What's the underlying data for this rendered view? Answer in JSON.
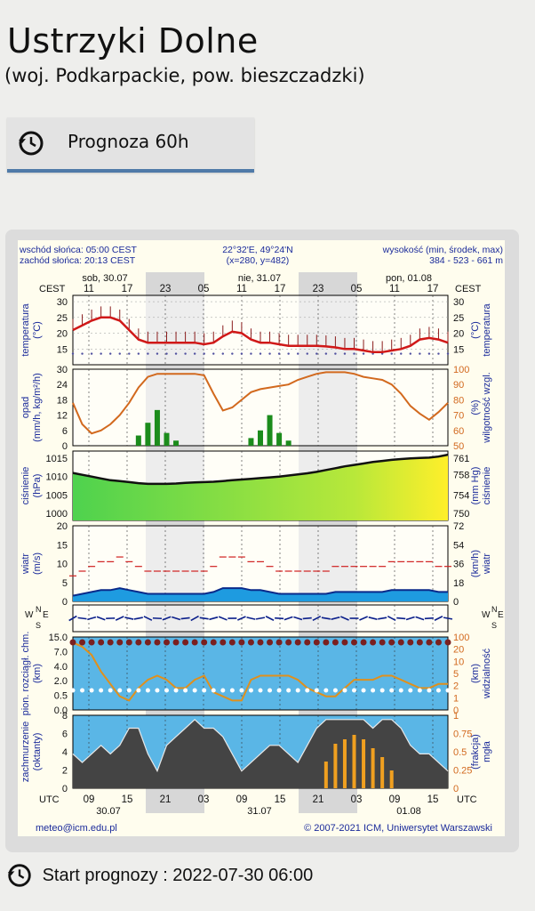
{
  "header": {
    "title": "Ustrzyki Dolne",
    "subtitle": "(woj. Podkarpackie, pow. bieszczadzki)"
  },
  "tab": {
    "label": "Prognoza 60h",
    "icon": "clock-history-icon"
  },
  "meteogram": {
    "sunrise": "wschód słońca: 05:00 CEST",
    "sunset": "zachód słońca: 20:13 CEST",
    "coords": "22°32'E, 49°24'N",
    "grid": "(x=280, y=482)",
    "elev_label": "wysokość (min, środek, max)",
    "elev_values": "384 - 523 - 661 m",
    "tz_top": "CEST",
    "tz_bottom": "UTC",
    "footer_left": "meteo@icm.edu.pl",
    "footer_right": "© 2007-2021 ICM, Uniwersytet Warszawski",
    "days_top": [
      "sob, 30.07",
      "nie, 31.07",
      "pon, 01.08"
    ],
    "hours_top": [
      "11",
      "17",
      "23",
      "05",
      "11",
      "17",
      "23",
      "05",
      "11",
      "17"
    ],
    "hours_bottom": [
      "09",
      "15",
      "21",
      "03",
      "09",
      "15",
      "21",
      "03",
      "09",
      "15"
    ],
    "days_bottom": [
      "30.07",
      "31.07",
      "01.08"
    ],
    "labels": {
      "temp_l": "temperatura",
      "temp_lu": "(°C)",
      "temp_r": "temperatura",
      "temp_ru": "(°C)",
      "opad_l": "opad",
      "opad_lu": "(mm/h, kg/m²/h)",
      "hum_r": "wilgotność wzgl.",
      "hum_ru": "(%)",
      "pres_l": "ciśnienie",
      "pres_lu": "(hPa)",
      "pres_r": "ciśnienie",
      "pres_ru": "(mm Hg)",
      "wind_l": "wiatr",
      "wind_lu": "(m/s)",
      "wind_r": "wiatr",
      "wind_ru": "(km/h)",
      "vis_l": "pion. rozciągł. chm.",
      "vis_lu": "(km)",
      "vis_r": "widzialność",
      "vis_ru": "(km)",
      "cloud_l": "zachmurzenie",
      "cloud_lu": "(oktanty)",
      "fog_r": "mgła",
      "fog_ru": "(frakcja)",
      "dir_n": "N",
      "dir_s": "S",
      "dir_w": "W",
      "dir_e": "E"
    }
  },
  "chart_data": [
    {
      "type": "line",
      "title": "temperatura",
      "ylabel": "temperatura (°C)",
      "ylim": [
        10,
        30
      ],
      "yticks": [
        15,
        20,
        25,
        30
      ],
      "series": [
        {
          "values": [
            21,
            22.5,
            24,
            25,
            25,
            24,
            21,
            18,
            17,
            17,
            17,
            17,
            17,
            17,
            16.5,
            17,
            19,
            20.5,
            20,
            18,
            17,
            17,
            16.5,
            16,
            16,
            16,
            16,
            15.8,
            15.5,
            15,
            15,
            14.5,
            14,
            14,
            14.5,
            15,
            16,
            18,
            18.5,
            18,
            17
          ]
        }
      ]
    },
    {
      "type": "line",
      "title": "opad / wilgotność",
      "ylabel": "opad (mm/h, kg/m²/h)",
      "y2label": "wilgotność wzgl. (%)",
      "ylim": [
        0,
        30
      ],
      "y2lim": [
        50,
        100
      ],
      "yticks": [
        0,
        6,
        12,
        18,
        24,
        30
      ],
      "y2ticks": [
        50,
        60,
        70,
        80,
        90,
        100
      ],
      "series": [
        {
          "values": [
            78,
            64,
            58,
            60,
            64,
            70,
            78,
            88,
            95,
            97,
            97,
            97,
            97,
            97,
            96,
            84,
            73,
            75,
            80,
            85,
            87,
            88,
            89,
            90,
            93,
            95,
            97,
            98,
            98,
            98,
            97,
            95,
            94,
            93,
            90,
            84,
            76,
            71,
            67,
            72,
            78
          ]
        }
      ]
    },
    {
      "type": "area",
      "title": "ciśnienie",
      "ylabel": "ciśnienie (hPa)",
      "y2label": "ciśnienie (mm Hg)",
      "ylim": [
        998,
        1017
      ],
      "yticks": [
        1000,
        1005,
        1010,
        1015
      ],
      "y2ticks": [
        750,
        754,
        758,
        761
      ],
      "series": [
        {
          "values": [
            1011,
            1010.5,
            1010,
            1009.5,
            1009,
            1008.8,
            1008.5,
            1008.2,
            1008,
            1008,
            1008,
            1008.1,
            1008.3,
            1008.4,
            1008.5,
            1008.6,
            1008.8,
            1009,
            1009.2,
            1009.4,
            1009.6,
            1009.8,
            1010,
            1010.3,
            1010.6,
            1010.9,
            1011.3,
            1011.8,
            1012.3,
            1012.8,
            1013.2,
            1013.6,
            1014,
            1014.3,
            1014.6,
            1014.8,
            1015,
            1015.1,
            1015.2,
            1015.5,
            1016
          ]
        }
      ]
    },
    {
      "type": "area",
      "title": "wiatr",
      "ylabel": "wiatr (m/s)",
      "y2label": "wiatr (km/h)",
      "ylim": [
        0,
        20
      ],
      "yticks": [
        0,
        5,
        10,
        15,
        20
      ],
      "y2ticks": [
        0,
        18,
        36,
        54,
        72
      ],
      "series": [
        {
          "values": [
            1.5,
            2,
            2.5,
            3,
            3,
            3.5,
            3,
            2.5,
            2,
            2,
            2,
            2,
            2,
            2,
            2,
            2.5,
            3.5,
            3.5,
            3.5,
            3,
            3,
            2.5,
            2,
            2,
            2,
            2,
            2,
            2,
            2.5,
            2.5,
            2.5,
            2.5,
            2.5,
            2.5,
            3,
            3,
            3,
            3,
            3,
            2.5,
            2.5
          ]
        }
      ]
    },
    {
      "type": "line",
      "title": "pion. rozciągł. chm. / widzialność",
      "ylabel": "pion. rozciągł. chm. (km)",
      "y2label": "widzialność (km)",
      "yticks": [
        0.0,
        0.5,
        2.0,
        4.0,
        7.0,
        15.0
      ],
      "y2ticks": [
        0,
        1,
        2,
        5,
        10,
        20,
        100
      ],
      "series": [
        {
          "values": [
            15,
            14,
            12,
            8,
            5,
            2,
            1,
            4,
            6,
            7,
            6,
            4,
            4,
            6,
            7,
            3,
            2,
            1,
            1,
            6,
            7,
            7,
            7,
            7,
            6,
            4,
            3,
            2,
            2,
            4,
            6,
            6,
            6,
            7,
            7,
            6,
            5,
            4,
            4,
            5,
            5
          ]
        }
      ]
    },
    {
      "type": "area",
      "title": "zachmurzenie / mgła",
      "ylabel": "zachmurzenie (oktanty)",
      "y2label": "mgła (frakcja)",
      "ylim": [
        0,
        8
      ],
      "y2lim": [
        0,
        1
      ],
      "yticks": [
        0,
        2,
        4,
        6,
        8
      ],
      "y2ticks": [
        0,
        0.25,
        0.5,
        0.75,
        1
      ],
      "series": [
        {
          "values": [
            4,
            3,
            4,
            5,
            4,
            5,
            7,
            7,
            4,
            2,
            5,
            6,
            7,
            8,
            7,
            7,
            6,
            4,
            2,
            3,
            4,
            5,
            5,
            4,
            3,
            5,
            7,
            8,
            8,
            8,
            8,
            8,
            7,
            8,
            8,
            7,
            5,
            4,
            4,
            3,
            2
          ]
        }
      ]
    }
  ]
}
